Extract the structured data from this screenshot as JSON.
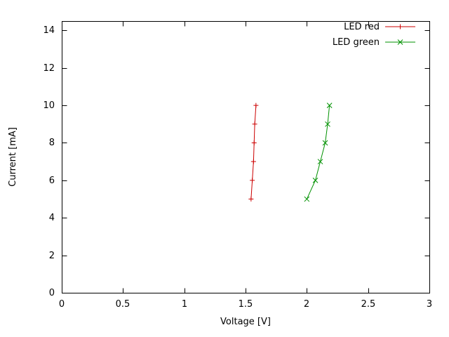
{
  "chart_data": {
    "type": "line",
    "title": "",
    "xlabel": "Voltage [V]",
    "ylabel": "Current [mA]",
    "xlim": [
      0,
      3
    ],
    "ylim": [
      0,
      14.5
    ],
    "xticks": [
      {
        "v": 0,
        "label": "0"
      },
      {
        "v": 0.5,
        "label": "0.5"
      },
      {
        "v": 1,
        "label": "1"
      },
      {
        "v": 1.5,
        "label": "1.5"
      },
      {
        "v": 2,
        "label": "2"
      },
      {
        "v": 2.5,
        "label": "2.5"
      },
      {
        "v": 3,
        "label": "3"
      }
    ],
    "yticks": [
      {
        "v": 0,
        "label": "0"
      },
      {
        "v": 2,
        "label": "2"
      },
      {
        "v": 4,
        "label": "4"
      },
      {
        "v": 6,
        "label": "6"
      },
      {
        "v": 8,
        "label": "8"
      },
      {
        "v": 10,
        "label": "10"
      },
      {
        "v": 12,
        "label": "12"
      },
      {
        "v": 14,
        "label": "14"
      }
    ],
    "grid": false,
    "legend_position": "top-right-inside",
    "series": [
      {
        "name": "LED red",
        "color": "#cc0000",
        "marker": "plus",
        "points": [
          [
            1.545,
            5
          ],
          [
            1.555,
            6
          ],
          [
            1.565,
            7
          ],
          [
            1.57,
            8
          ],
          [
            1.575,
            9
          ],
          [
            1.585,
            10
          ]
        ]
      },
      {
        "name": "LED green",
        "color": "#009100",
        "marker": "cross",
        "points": [
          [
            2.0,
            5
          ],
          [
            2.07,
            6
          ],
          [
            2.11,
            7
          ],
          [
            2.15,
            8
          ],
          [
            2.17,
            9
          ],
          [
            2.185,
            10
          ]
        ]
      }
    ]
  },
  "colors": {
    "border": "#000000",
    "background": "#ffffff",
    "text": "#000000"
  }
}
